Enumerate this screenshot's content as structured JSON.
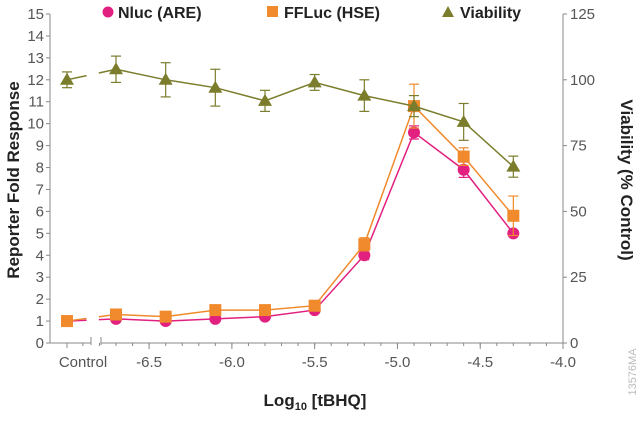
{
  "chart_data": {
    "type": "line",
    "xlabel_main": "Log",
    "xlabel_sub": "10",
    "xlabel_rest": " [tBHQ]",
    "ylabel": "Reporter Fold Response",
    "y2label": "Viability (% Control)",
    "xlim": [
      -7.0,
      -4.0
    ],
    "ylim": [
      0,
      15
    ],
    "y2lim": [
      0,
      125
    ],
    "control_label": "Control",
    "x_ticks": [
      "-6.5",
      "-6.0",
      "-5.5",
      "-5.0",
      "-4.5",
      "-4.0"
    ],
    "x_tick_values": [
      -6.5,
      -6.0,
      -5.5,
      -5.0,
      -4.5,
      -4.0
    ],
    "y_ticks": [
      "0",
      "1",
      "2",
      "3",
      "4",
      "5",
      "6",
      "7",
      "8",
      "9",
      "10",
      "11",
      "12",
      "13",
      "14",
      "15"
    ],
    "y2_ticks": [
      "0",
      "25",
      "50",
      "75",
      "100",
      "125"
    ],
    "x": [
      -6.7,
      -6.4,
      -6.1,
      -5.8,
      -5.5,
      -5.2,
      -4.9,
      -4.6,
      -4.3
    ],
    "legend_position": "top",
    "grid": false,
    "series": [
      {
        "name": "Nluc (ARE)",
        "axis": "left",
        "marker": "circle",
        "color": "#e2207f",
        "control": 1.0,
        "control_err": 0.05,
        "values": [
          1.1,
          1.0,
          1.1,
          1.2,
          1.5,
          4.0,
          9.6,
          7.9,
          5.0
        ],
        "errors": [
          0.05,
          0.05,
          0.05,
          0.05,
          0.1,
          0.2,
          0.3,
          0.35,
          0.1
        ]
      },
      {
        "name": "FFLuc (HSE)",
        "axis": "left",
        "marker": "square",
        "color": "#f08a2c",
        "control": 1.0,
        "control_err": 0.05,
        "values": [
          1.3,
          1.2,
          1.5,
          1.5,
          1.7,
          4.5,
          10.8,
          8.5,
          5.8
        ],
        "errors": [
          0.05,
          0.05,
          0.1,
          0.1,
          0.1,
          0.3,
          1.0,
          0.4,
          0.9
        ]
      },
      {
        "name": "Viability",
        "axis": "right",
        "marker": "triangle",
        "color": "#7b7d2c",
        "control": 100,
        "control_err": 3,
        "values": [
          104,
          100,
          97,
          92,
          99,
          94,
          90,
          84,
          67
        ],
        "errors": [
          5,
          6.5,
          7,
          4,
          3,
          6,
          4,
          7,
          4
        ]
      }
    ]
  },
  "watermark": "13576MA"
}
